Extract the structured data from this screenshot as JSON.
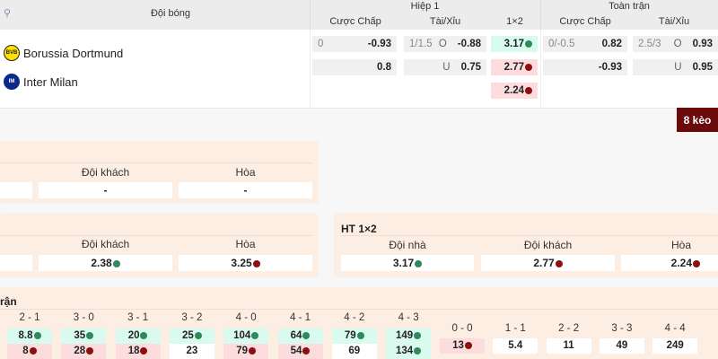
{
  "header": {
    "team_col": "Đội bóng",
    "half1": "Hiệp 1",
    "full": "Toàn trận",
    "h1_cols": [
      "Cược Chấp",
      "Tài/Xỉu",
      "1×2"
    ],
    "ft_cols": [
      "Cược Chấp",
      "Tài/Xỉu"
    ]
  },
  "teams": [
    {
      "name": "Borussia Dortmund",
      "color": "#fde100"
    },
    {
      "name": "Inter Milan",
      "color": "#0a2a8a"
    }
  ],
  "odds": {
    "h1_handicap": [
      {
        "line": "0",
        "value": "-0.93"
      },
      {
        "line": "",
        "value": "0.8"
      }
    ],
    "h1_ou": [
      {
        "line": "1/1.5",
        "side": "O",
        "value": "-0.88"
      },
      {
        "line": "",
        "side": "U",
        "value": "0.75"
      }
    ],
    "h1_1x2": [
      {
        "value": "3.17",
        "trend": "up"
      },
      {
        "value": "2.77",
        "trend": "down"
      },
      {
        "value": "2.24",
        "trend": "down"
      }
    ],
    "ft_handicap": [
      {
        "line": "0/-0.5",
        "value": "0.82"
      },
      {
        "line": "",
        "value": "-0.93"
      }
    ],
    "ft_ou": [
      {
        "line": "2.5/3",
        "side": "O",
        "value": "0.93"
      },
      {
        "line": "",
        "side": "U",
        "value": "0.95"
      }
    ]
  },
  "more_button": "8 kèo",
  "panel1": {
    "labels": [
      "Đội khách",
      "Hòa"
    ],
    "values": [
      "",
      "-",
      "-"
    ]
  },
  "panel2": {
    "labels": [
      "Đội khách",
      "Hòa"
    ],
    "values": [
      "",
      "2.38",
      "3.25"
    ]
  },
  "panel3": {
    "title": "HT 1×2",
    "labels": [
      "Đội nhà",
      "Đội khách",
      "Hòa"
    ],
    "values": [
      "3.17",
      "2.77",
      "2.24"
    ]
  },
  "panel4": {
    "title": "rận",
    "scores": [
      "2 - 1",
      "3 - 0",
      "3 - 1",
      "3 - 2",
      "4 - 0",
      "4 - 1",
      "4 - 2",
      "4 - 3"
    ],
    "row1": [
      {
        "v": "8.8",
        "t": "up"
      },
      {
        "v": "35",
        "t": "up"
      },
      {
        "v": "20",
        "t": "up"
      },
      {
        "v": "25",
        "t": "up"
      },
      {
        "v": "104",
        "t": "up"
      },
      {
        "v": "64",
        "t": "up"
      },
      {
        "v": "79",
        "t": "up"
      },
      {
        "v": "149",
        "t": "up"
      }
    ],
    "row2": [
      {
        "v": "8",
        "t": "down"
      },
      {
        "v": "28",
        "t": "down"
      },
      {
        "v": "18",
        "t": "down"
      },
      {
        "v": "23",
        "t": ""
      },
      {
        "v": "79",
        "t": "down"
      },
      {
        "v": "54",
        "t": "down"
      },
      {
        "v": "69",
        "t": ""
      },
      {
        "v": "134",
        "t": "up"
      }
    ],
    "draws": [
      "0 - 0",
      "1 - 1",
      "2 - 2",
      "3 - 3",
      "4 - 4"
    ],
    "draw_values": [
      {
        "v": "13",
        "t": "down"
      },
      {
        "v": "5.4",
        "t": ""
      },
      {
        "v": "11",
        "t": ""
      },
      {
        "v": "49",
        "t": ""
      },
      {
        "v": "249",
        "t": ""
      }
    ]
  }
}
